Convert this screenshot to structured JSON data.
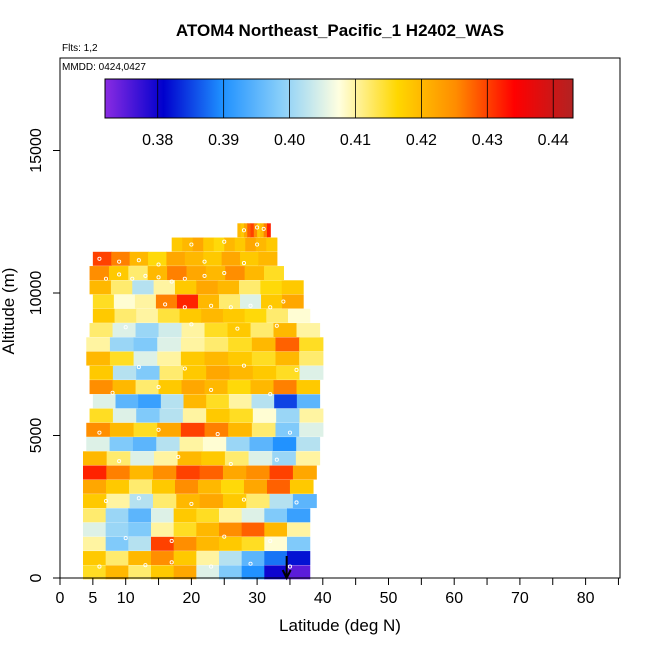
{
  "chart_data": {
    "type": "heatmap",
    "title": "ATOM4 Northeast_Pacific_1 H2402_WAS",
    "flights_label": "Flts: 1,2",
    "date_label": "MMDD: 0424,0427",
    "xlabel": "Latitude (deg N)",
    "ylabel": "Altitude (m)",
    "xlim": [
      0,
      85
    ],
    "ylim": [
      0,
      18000
    ],
    "x_ticks": [
      0,
      5,
      10,
      20,
      30,
      40,
      50,
      60,
      70,
      80
    ],
    "x_minor_ticks": [
      15,
      25,
      35,
      45,
      55,
      65,
      75,
      85
    ],
    "y_ticks": [
      0,
      5000,
      10000,
      15000
    ],
    "colorbar": {
      "min": 0.372,
      "max": 0.443,
      "ticks": [
        0.38,
        0.39,
        0.4,
        0.41,
        0.42,
        0.43,
        0.44
      ],
      "tick_labels": [
        "0.38",
        "0.39",
        "0.40",
        "0.41",
        "0.42",
        "0.43",
        "0.44"
      ],
      "colors": [
        "#8a2be2",
        "#0000cd",
        "#1e90ff",
        "#87cefa",
        "#ffffe0",
        "#ffd700",
        "#ff8c00",
        "#ff0000",
        "#b22222"
      ]
    },
    "layers": [
      {
        "alt": 200,
        "lat_min": 3.5,
        "lat_max": 38,
        "values": [
          0.415,
          0.42,
          0.412,
          0.418,
          0.422,
          0.405,
          0.398,
          0.39,
          0.38,
          0.375
        ]
      },
      {
        "alt": 700,
        "lat_min": 3.5,
        "lat_max": 38,
        "values": [
          0.418,
          0.412,
          0.42,
          0.425,
          0.418,
          0.41,
          0.402,
          0.395,
          0.388,
          0.382
        ]
      },
      {
        "alt": 1200,
        "lat_min": 3.5,
        "lat_max": 38,
        "values": [
          0.41,
          0.398,
          0.402,
          0.43,
          0.425,
          0.42,
          0.418,
          0.415,
          0.408,
          0.398
        ]
      },
      {
        "alt": 1700,
        "lat_min": 3.5,
        "lat_max": 38,
        "values": [
          0.405,
          0.4,
          0.398,
          0.41,
          0.415,
          0.42,
          0.425,
          0.428,
          0.42,
          0.41
        ]
      },
      {
        "alt": 2200,
        "lat_min": 3.5,
        "lat_max": 38,
        "values": [
          0.412,
          0.4,
          0.395,
          0.405,
          0.418,
          0.415,
          0.41,
          0.405,
          0.398,
          0.392
        ]
      },
      {
        "alt": 2700,
        "lat_min": 3.5,
        "lat_max": 39,
        "values": [
          0.418,
          0.41,
          0.402,
          0.412,
          0.42,
          0.422,
          0.418,
          0.412,
          0.402,
          0.395
        ]
      },
      {
        "alt": 3200,
        "lat_min": 3.5,
        "lat_max": 38.5,
        "values": [
          0.422,
          0.418,
          0.412,
          0.418,
          0.425,
          0.42,
          0.416,
          0.422,
          0.428,
          0.418
        ]
      },
      {
        "alt": 3700,
        "lat_min": 3.5,
        "lat_max": 39,
        "values": [
          0.432,
          0.426,
          0.42,
          0.425,
          0.43,
          0.428,
          0.422,
          0.425,
          0.43,
          0.422
        ]
      },
      {
        "alt": 4200,
        "lat_min": 3.5,
        "lat_max": 39.5,
        "values": [
          0.42,
          0.412,
          0.405,
          0.41,
          0.42,
          0.418,
          0.412,
          0.405,
          0.4,
          0.41
        ]
      },
      {
        "alt": 4700,
        "lat_min": 4,
        "lat_max": 39.5,
        "values": [
          0.405,
          0.398,
          0.395,
          0.402,
          0.41,
          0.408,
          0.4,
          0.395,
          0.39,
          0.402
        ]
      },
      {
        "alt": 5200,
        "lat_min": 4,
        "lat_max": 40,
        "values": [
          0.425,
          0.42,
          0.415,
          0.422,
          0.43,
          0.426,
          0.42,
          0.412,
          0.398,
          0.405
        ]
      },
      {
        "alt": 5700,
        "lat_min": 4.5,
        "lat_max": 40,
        "values": [
          0.415,
          0.405,
          0.398,
          0.402,
          0.41,
          0.418,
          0.415,
          0.408,
          0.4,
          0.41
        ]
      },
      {
        "alt": 6200,
        "lat_min": 5,
        "lat_max": 39.5,
        "values": [
          0.405,
          0.395,
          0.392,
          0.402,
          0.42,
          0.415,
          0.41,
          0.402,
          0.385,
          0.395
        ]
      },
      {
        "alt": 6700,
        "lat_min": 4.5,
        "lat_max": 39.5,
        "values": [
          0.425,
          0.42,
          0.412,
          0.418,
          0.422,
          0.42,
          0.416,
          0.42,
          0.426,
          0.418
        ]
      },
      {
        "alt": 7200,
        "lat_min": 4.5,
        "lat_max": 40,
        "values": [
          0.418,
          0.402,
          0.398,
          0.412,
          0.418,
          0.422,
          0.42,
          0.418,
          0.415,
          0.405
        ]
      },
      {
        "alt": 7700,
        "lat_min": 4,
        "lat_max": 40,
        "values": [
          0.42,
          0.415,
          0.405,
          0.41,
          0.418,
          0.42,
          0.418,
          0.415,
          0.42,
          0.412
        ]
      },
      {
        "alt": 8200,
        "lat_min": 4,
        "lat_max": 40,
        "values": [
          0.41,
          0.4,
          0.398,
          0.405,
          0.41,
          0.412,
          0.415,
          0.42,
          0.428,
          0.415
        ]
      },
      {
        "alt": 8700,
        "lat_min": 4.5,
        "lat_max": 39.5,
        "values": [
          0.412,
          0.405,
          0.4,
          0.404,
          0.41,
          0.415,
          0.418,
          0.412,
          0.42,
          0.41
        ]
      },
      {
        "alt": 9200,
        "lat_min": 5,
        "lat_max": 38,
        "values": [
          0.418,
          0.412,
          0.41,
          0.414,
          0.418,
          0.42,
          0.418,
          0.416,
          0.412,
          0.408
        ]
      },
      {
        "alt": 9700,
        "lat_min": 5,
        "lat_max": 37,
        "values": [
          0.415,
          0.408,
          0.41,
          0.426,
          0.432,
          0.42,
          0.412,
          0.405,
          0.418,
          0.422
        ]
      },
      {
        "alt": 10200,
        "lat_min": 4.5,
        "lat_max": 37,
        "values": [
          0.42,
          0.412,
          0.402,
          0.41,
          0.418,
          0.422,
          0.42,
          0.412,
          0.416,
          0.418
        ]
      },
      {
        "alt": 10700,
        "lat_min": 4.5,
        "lat_max": 34,
        "values": [
          0.425,
          0.418,
          0.412,
          0.42,
          0.426,
          0.422,
          0.42,
          0.425,
          0.42,
          0.415
        ]
      },
      {
        "alt": 11200,
        "lat_min": 5,
        "lat_max": 33,
        "values": [
          0.43,
          0.426,
          0.42,
          0.416,
          0.422,
          0.42,
          0.418,
          0.422,
          0.418,
          0.42
        ]
      },
      {
        "alt": 11700,
        "lat_min": 17,
        "lat_max": 33,
        "values": [
          0.418,
          0.42,
          0.422,
          0.418,
          0.416,
          0.42,
          0.418,
          0.422,
          0.42,
          0.418
        ]
      },
      {
        "alt": 12200,
        "lat_min": 27,
        "lat_max": 32,
        "values": [
          0.42,
          0.418,
          0.422,
          0.428,
          0.43,
          0.425,
          0.418,
          0.42,
          0.426,
          0.432
        ]
      }
    ],
    "sample_points": [
      [
        6,
        400
      ],
      [
        13,
        450
      ],
      [
        17,
        550
      ],
      [
        23,
        400
      ],
      [
        29,
        500
      ],
      [
        35,
        400
      ],
      [
        10,
        1400
      ],
      [
        17,
        1300
      ],
      [
        25,
        1450
      ],
      [
        32,
        1300
      ],
      [
        7,
        2700
      ],
      [
        12,
        2800
      ],
      [
        20,
        2600
      ],
      [
        28,
        2750
      ],
      [
        36,
        2650
      ],
      [
        9,
        4100
      ],
      [
        18,
        4250
      ],
      [
        26,
        4000
      ],
      [
        33,
        4150
      ],
      [
        6,
        5100
      ],
      [
        15,
        5200
      ],
      [
        24,
        5050
      ],
      [
        35,
        5100
      ],
      [
        8,
        6500
      ],
      [
        15,
        6700
      ],
      [
        23,
        6600
      ],
      [
        32,
        6450
      ],
      [
        12,
        7400
      ],
      [
        19,
        7350
      ],
      [
        28,
        7450
      ],
      [
        36,
        7300
      ],
      [
        10,
        8800
      ],
      [
        20,
        8900
      ],
      [
        27,
        8750
      ],
      [
        33,
        8850
      ],
      [
        16,
        9600
      ],
      [
        19,
        9500
      ],
      [
        23,
        9550
      ],
      [
        26,
        9500
      ],
      [
        29,
        9550
      ],
      [
        32,
        9500
      ],
      [
        34,
        9700
      ],
      [
        7,
        10500
      ],
      [
        9,
        10650
      ],
      [
        11,
        10500
      ],
      [
        13,
        10600
      ],
      [
        15,
        10550
      ],
      [
        17,
        10400
      ],
      [
        19,
        10500
      ],
      [
        22,
        10600
      ],
      [
        25,
        10700
      ],
      [
        6,
        11200
      ],
      [
        9,
        11100
      ],
      [
        12,
        11150
      ],
      [
        15,
        11000
      ],
      [
        22,
        11100
      ],
      [
        28,
        11050
      ],
      [
        20,
        11700
      ],
      [
        25,
        11800
      ],
      [
        30,
        11700
      ],
      [
        28,
        12200
      ],
      [
        30,
        12300
      ],
      [
        31,
        12250
      ]
    ],
    "arrow_lat": 34.5
  }
}
